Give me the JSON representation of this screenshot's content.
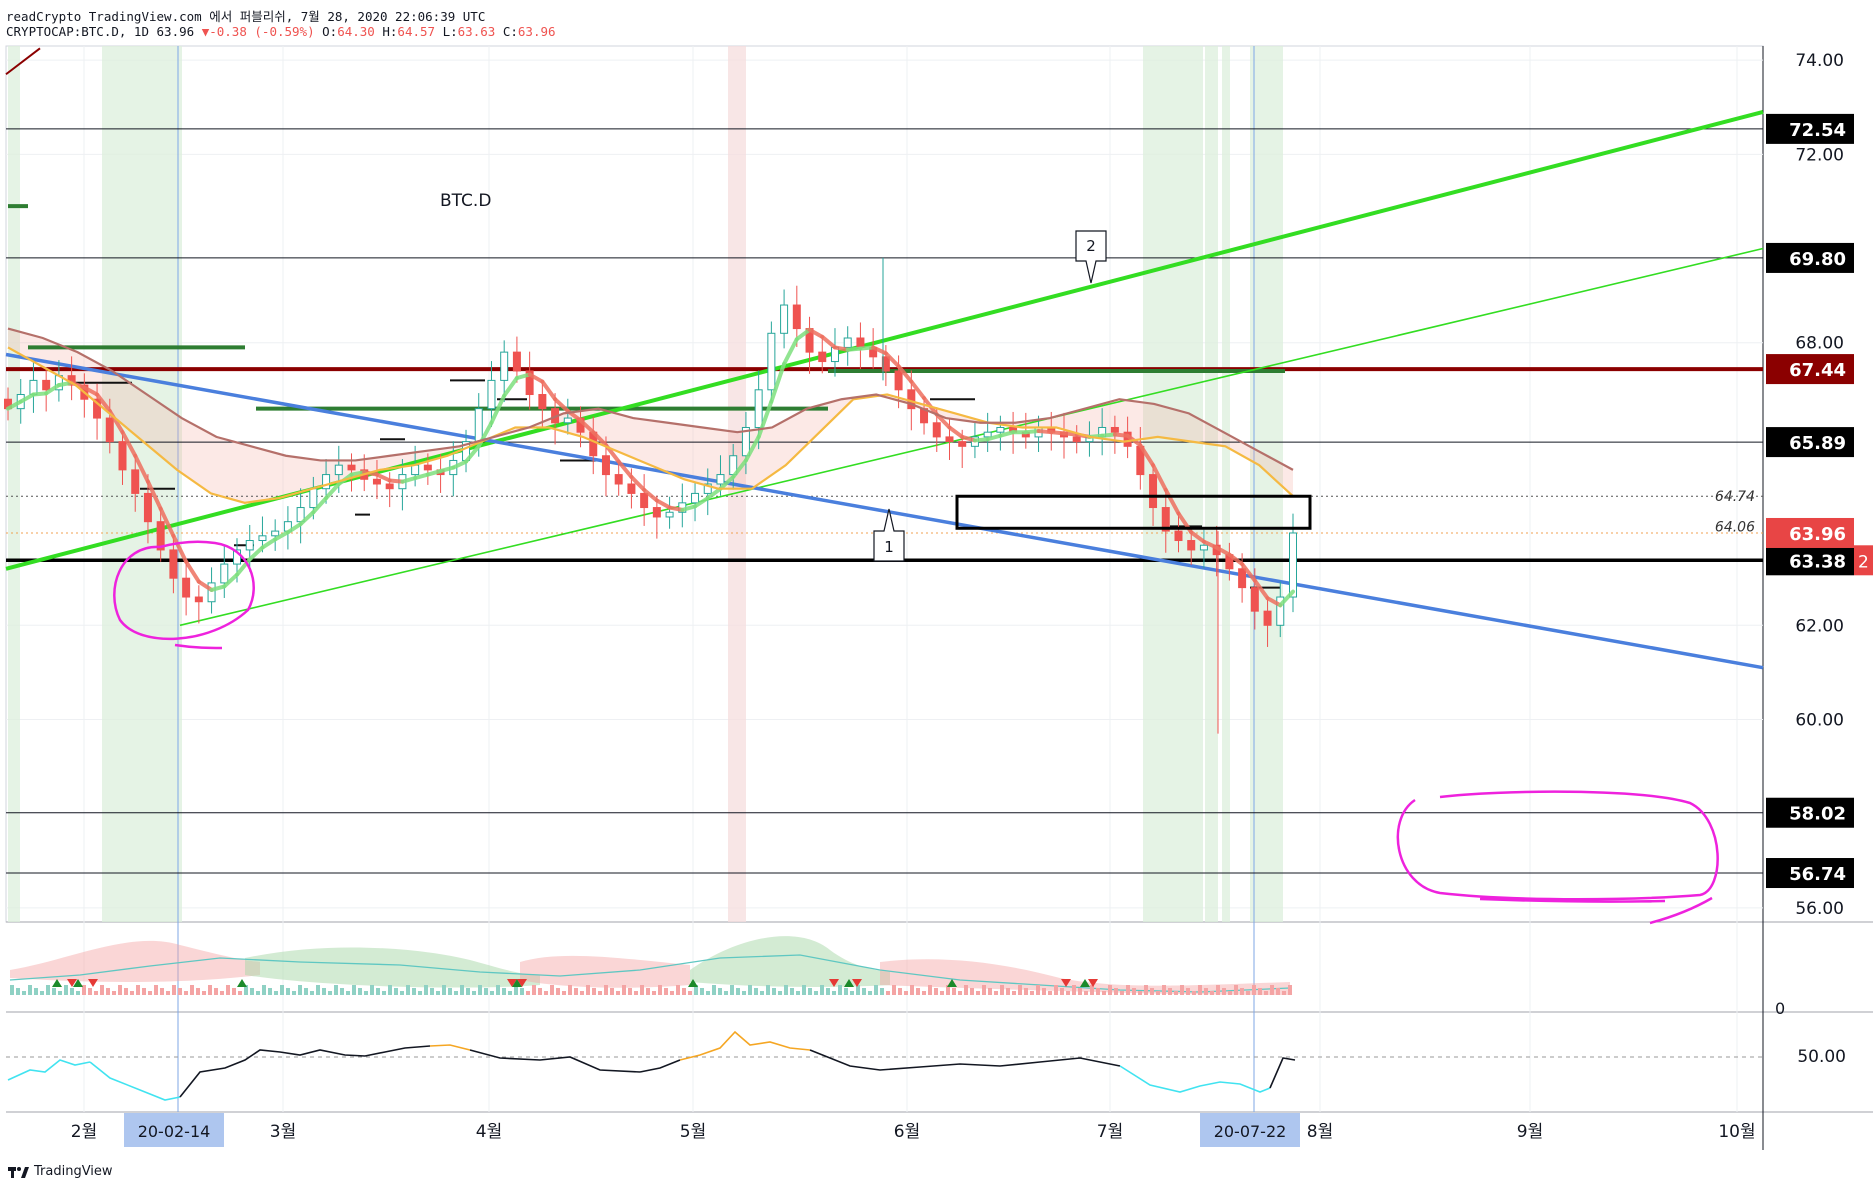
{
  "header": {
    "line1": "readCrypto TradingView.com 에서 퍼블리쉬, 7월 28, 2020 22:06:39 UTC",
    "symbol": "CRYPTOCAP:BTC.D, 1D",
    "last": "63.96",
    "change_arrow": "▼",
    "change": "-0.38 (-0.59%)",
    "o_label": "O:",
    "o": "64.30",
    "h_label": "H:",
    "h": "64.57",
    "l_label": "L:",
    "l": "63.63",
    "c_label": "C:",
    "c": "63.96"
  },
  "brand": {
    "name": "TradingView"
  },
  "colors": {
    "up": "#26a69a",
    "down": "#ef5350",
    "accent_green": "#33dd22",
    "trend_blue": "#4a7fdd",
    "resistance": "#8b0000",
    "magenta": "#ee22dd",
    "tag_bg": "#000000",
    "tag_red": "#e84545",
    "date_tag_bg": "#aec6ef"
  },
  "chart_data": {
    "type": "line",
    "title": "BTC.D",
    "y_axis": {
      "range": [
        55.7,
        74.3
      ],
      "ticks": [
        "74.00",
        "72.00",
        "68.00",
        "62.00",
        "60.00",
        "56.00"
      ],
      "tick_values": [
        74.0,
        72.0,
        68.0,
        62.0,
        60.0,
        56.0
      ]
    },
    "x_axis": {
      "months": [
        "2월",
        "3월",
        "4월",
        "5월",
        "6월",
        "7월",
        "8월",
        "9월",
        "10월"
      ],
      "date_tags": [
        "20-02-14",
        "20-07-22"
      ]
    },
    "horizontal_levels": [
      {
        "value": 72.54,
        "label": "72.54",
        "style": "thin"
      },
      {
        "value": 69.8,
        "label": "69.80",
        "style": "thin"
      },
      {
        "value": 67.44,
        "label": "67.44",
        "style": "thick-dark-red"
      },
      {
        "value": 65.89,
        "label": "65.89",
        "style": "thin"
      },
      {
        "value": 63.38,
        "label": "63.38",
        "style": "thick-black"
      },
      {
        "value": 58.02,
        "label": "58.02",
        "style": "thin"
      },
      {
        "value": 56.74,
        "label": "56.74",
        "style": "thin"
      }
    ],
    "current_price": {
      "value": 63.96,
      "label": "63.96"
    },
    "side_tag": "2",
    "box_levels": [
      {
        "value": 64.74,
        "label": "64.74"
      },
      {
        "value": 64.06,
        "label": "64.06"
      }
    ],
    "callouts": [
      "1",
      "2"
    ],
    "price_series": [
      66.6,
      66.9,
      67.2,
      67.0,
      67.3,
      67.1,
      66.8,
      66.4,
      65.9,
      65.3,
      64.8,
      64.2,
      63.6,
      63.0,
      62.6,
      62.5,
      62.9,
      63.3,
      63.6,
      63.8,
      63.9,
      64.0,
      64.2,
      64.5,
      64.9,
      65.2,
      65.4,
      65.3,
      65.1,
      65.0,
      64.9,
      65.2,
      65.4,
      65.3,
      65.2,
      65.5,
      65.9,
      66.6,
      67.2,
      67.8,
      67.4,
      66.9,
      66.6,
      66.3,
      66.4,
      66.1,
      65.6,
      65.2,
      65.0,
      64.8,
      64.5,
      64.3,
      64.4,
      64.6,
      64.8,
      65.0,
      65.2,
      65.6,
      66.2,
      67.0,
      68.2,
      68.8,
      68.3,
      67.8,
      67.6,
      67.9,
      68.1,
      67.9,
      67.7,
      67.4,
      67.0,
      66.6,
      66.3,
      66.0,
      65.9,
      65.8,
      66.0,
      66.1,
      66.2,
      66.1,
      66.0,
      66.2,
      66.1,
      66.0,
      65.9,
      66.0,
      66.2,
      66.1,
      65.8,
      65.2,
      64.5,
      64.0,
      63.8,
      63.6,
      63.7,
      63.5,
      63.2,
      62.8,
      62.3,
      62.0,
      62.6,
      63.96
    ],
    "ema_series": [
      {
        "name": "",
        "color": "#f5b942",
        "values": [
          67.9,
          67.5,
          67.1,
          66.5,
          65.9,
          65.3,
          64.8,
          64.6,
          64.7,
          64.9,
          65.1,
          65.3,
          65.4,
          65.6,
          65.9,
          66.2,
          66.2,
          66.0,
          65.7,
          65.4,
          65.1,
          64.9,
          64.9,
          65.4,
          66.1,
          66.8,
          66.9,
          66.7,
          66.5,
          66.3,
          66.2,
          66.2,
          66.0,
          65.9,
          66.0,
          65.9,
          65.8,
          65.4,
          64.74
        ]
      },
      {
        "name": "",
        "color": "#b5706a",
        "values": [
          68.3,
          68.1,
          67.8,
          67.4,
          66.9,
          66.4,
          66.0,
          65.8,
          65.6,
          65.5,
          65.5,
          65.6,
          65.7,
          65.8,
          66.0,
          66.2,
          66.5,
          66.6,
          66.4,
          66.3,
          66.2,
          66.1,
          66.2,
          66.6,
          66.8,
          66.9,
          66.7,
          66.4,
          66.3,
          66.3,
          66.4,
          66.6,
          66.8,
          66.7,
          66.5,
          66.1,
          65.7,
          65.3
        ]
      }
    ],
    "oscillator": {
      "reference": "0",
      "label": "0"
    },
    "rsi": {
      "reference": 50.0,
      "label": "50.00"
    },
    "grid": true
  }
}
